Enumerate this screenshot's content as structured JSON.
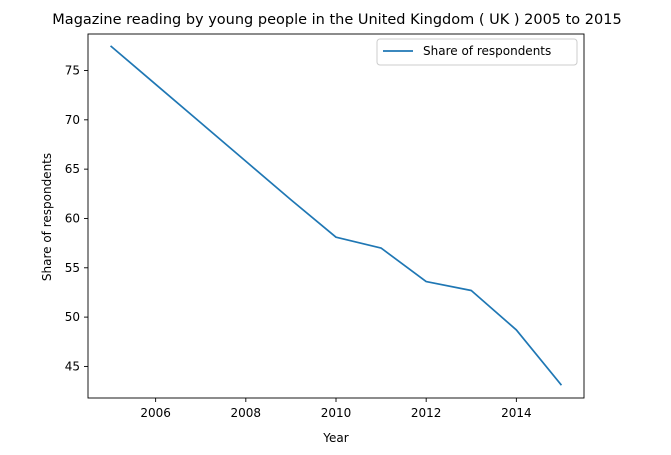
{
  "chart_data": {
    "type": "line",
    "title": "Magazine reading by young people in the United Kingdom ( UK ) 2005 to 2015",
    "xlabel": "Year",
    "ylabel": "Share of respondents",
    "x": [
      2005,
      2006,
      2007,
      2008,
      2009,
      2010,
      2011,
      2012,
      2013,
      2014,
      2015
    ],
    "series": [
      {
        "name": "Share of respondents",
        "color": "#1f77b4",
        "values": [
          77.5,
          73.6,
          69.7,
          65.8,
          61.9,
          58.1,
          57.0,
          53.6,
          52.7,
          48.7,
          43.1
        ]
      }
    ],
    "xlim": [
      2004.5,
      2015.5
    ],
    "ylim": [
      41.8,
      78.7
    ],
    "xticks": [
      2006,
      2008,
      2010,
      2012,
      2014
    ],
    "yticks": [
      45,
      50,
      55,
      60,
      65,
      70,
      75
    ],
    "grid": false,
    "legend_position": "top-right"
  }
}
